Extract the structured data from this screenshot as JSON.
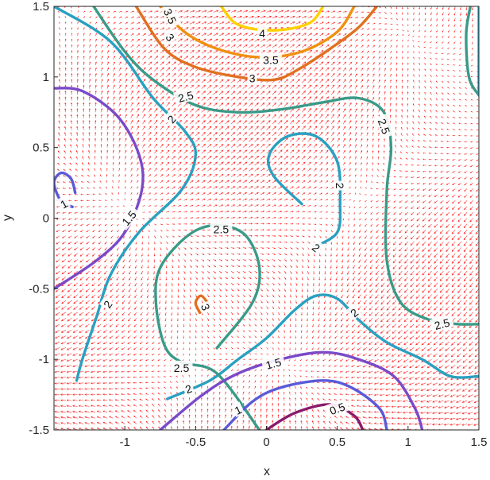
{
  "chart_data": {
    "type": "contour",
    "overlay": "quiver",
    "xlabel": "x",
    "ylabel": "y",
    "xlim": [
      -1.5,
      1.5
    ],
    "ylim": [
      -1.5,
      1.5
    ],
    "xticks": [
      -1,
      -0.5,
      0,
      0.5,
      1,
      1.5
    ],
    "yticks": [
      -1.5,
      -1,
      -0.5,
      0,
      0.5,
      1,
      1.5
    ],
    "xtick_labels": [
      "-1",
      "-0.5",
      "0",
      "0.5",
      "1",
      "1.5"
    ],
    "ytick_labels": [
      "-1.5",
      "-1",
      "-0.5",
      "0",
      "0.5",
      "1",
      "1.5"
    ],
    "grid": false,
    "quiver_color": "#ff0000",
    "contour_levels": [
      0.5,
      1,
      1.5,
      2,
      2.5,
      3,
      3.5,
      4
    ],
    "contour_colors": {
      "0.5": "#8a1a6a",
      "1": "#5a5ad8",
      "1.5": "#7a4ac8",
      "2": "#2aa0c0",
      "2.5": "#3a9a88",
      "3": "#e07020",
      "3.5": "#f09010",
      "4": "#ffd000"
    },
    "contour_labels": [
      {
        "text": "3.5",
        "x": -0.68,
        "y": 1.43,
        "angle": 65
      },
      {
        "text": "4",
        "x": -0.03,
        "y": 1.31,
        "angle": 0
      },
      {
        "text": "3",
        "x": -0.68,
        "y": 1.28,
        "angle": 55
      },
      {
        "text": "3.5",
        "x": 0.03,
        "y": 1.12,
        "angle": 0
      },
      {
        "text": "3",
        "x": -0.1,
        "y": 0.99,
        "angle": 0
      },
      {
        "text": "2.5",
        "x": -0.57,
        "y": 0.86,
        "angle": -15
      },
      {
        "text": "2",
        "x": -0.67,
        "y": 0.7,
        "angle": -50
      },
      {
        "text": "2.5",
        "x": 0.83,
        "y": 0.65,
        "angle": 70
      },
      {
        "text": "2",
        "x": 0.52,
        "y": 0.23,
        "angle": 90
      },
      {
        "text": "1",
        "x": -1.43,
        "y": 0.1,
        "angle": -30
      },
      {
        "text": "1.5",
        "x": -0.97,
        "y": 0.0,
        "angle": -50
      },
      {
        "text": "2.5",
        "x": -0.32,
        "y": -0.08,
        "angle": 0
      },
      {
        "text": "2",
        "x": 0.35,
        "y": -0.21,
        "angle": 40
      },
      {
        "text": "3",
        "x": -0.43,
        "y": -0.63,
        "angle": 70
      },
      {
        "text": "2",
        "x": -1.12,
        "y": -0.61,
        "angle": -55
      },
      {
        "text": "2",
        "x": 0.62,
        "y": -0.67,
        "angle": -40
      },
      {
        "text": "2.5",
        "x": 1.24,
        "y": -0.75,
        "angle": -15
      },
      {
        "text": "1.5",
        "x": 0.05,
        "y": -1.03,
        "angle": -15
      },
      {
        "text": "2.5",
        "x": -0.6,
        "y": -1.06,
        "angle": 0
      },
      {
        "text": "2",
        "x": -0.55,
        "y": -1.21,
        "angle": -20
      },
      {
        "text": "1",
        "x": -0.2,
        "y": -1.36,
        "angle": -25
      },
      {
        "text": "0.5",
        "x": 0.5,
        "y": -1.35,
        "angle": -20
      }
    ],
    "contour_lines": [
      {
        "level": 4,
        "points": [
          [
            -0.32,
            1.5
          ],
          [
            -0.2,
            1.37
          ],
          [
            0.05,
            1.33
          ],
          [
            0.3,
            1.38
          ],
          [
            0.4,
            1.5
          ]
        ]
      },
      {
        "level": 3.5,
        "points": [
          [
            -0.75,
            1.5
          ],
          [
            -0.58,
            1.32
          ],
          [
            -0.35,
            1.2
          ],
          [
            -0.05,
            1.14
          ],
          [
            0.25,
            1.18
          ],
          [
            0.5,
            1.32
          ],
          [
            0.62,
            1.5
          ]
        ]
      },
      {
        "level": 3,
        "points": [
          [
            -0.92,
            1.5
          ],
          [
            -0.72,
            1.2
          ],
          [
            -0.5,
            1.07
          ],
          [
            -0.2,
            1.0
          ],
          [
            0.05,
            0.98
          ],
          [
            0.22,
            1.05
          ],
          [
            0.45,
            1.2
          ],
          [
            0.65,
            1.35
          ],
          [
            0.78,
            1.5
          ]
        ]
      },
      {
        "level": 2.5,
        "points": [
          [
            -1.22,
            1.5
          ],
          [
            -1.0,
            1.18
          ],
          [
            -0.8,
            0.98
          ],
          [
            -0.5,
            0.8
          ],
          [
            -0.2,
            0.75
          ],
          [
            0.1,
            0.77
          ],
          [
            0.4,
            0.82
          ],
          [
            0.65,
            0.85
          ],
          [
            0.83,
            0.75
          ],
          [
            0.88,
            0.5
          ],
          [
            0.85,
            0.2
          ],
          [
            0.85,
            -0.3
          ],
          [
            0.95,
            -0.6
          ],
          [
            1.15,
            -0.72
          ],
          [
            1.35,
            -0.75
          ],
          [
            1.5,
            -0.75
          ]
        ]
      },
      {
        "level": 2.5,
        "points": [
          [
            1.5,
            0.87
          ],
          [
            1.43,
            1.0
          ],
          [
            1.41,
            1.3
          ],
          [
            1.44,
            1.5
          ]
        ]
      },
      {
        "level": 2,
        "points": [
          [
            -1.5,
            1.5
          ],
          [
            -1.1,
            1.25
          ],
          [
            -0.8,
            0.85
          ],
          [
            -0.58,
            0.62
          ],
          [
            -0.5,
            0.45
          ],
          [
            -0.6,
            0.2
          ],
          [
            -0.9,
            -0.1
          ],
          [
            -1.1,
            -0.4
          ],
          [
            -1.2,
            -0.7
          ],
          [
            -1.3,
            -1.0
          ],
          [
            -1.34,
            -1.15
          ]
        ]
      },
      {
        "level": 2,
        "points": [
          [
            0.25,
            0.1
          ],
          [
            0.05,
            0.3
          ],
          [
            0.02,
            0.45
          ],
          [
            0.15,
            0.58
          ],
          [
            0.35,
            0.58
          ],
          [
            0.5,
            0.4
          ],
          [
            0.52,
            0.1
          ],
          [
            0.5,
            -0.1
          ],
          [
            0.35,
            -0.2
          ]
        ]
      },
      {
        "level": 2,
        "points": [
          [
            -0.7,
            -1.28
          ],
          [
            -0.4,
            -1.15
          ],
          [
            -0.2,
            -1.0
          ],
          [
            0.0,
            -0.85
          ],
          [
            0.2,
            -0.65
          ],
          [
            0.35,
            -0.55
          ],
          [
            0.5,
            -0.57
          ],
          [
            0.65,
            -0.72
          ],
          [
            0.85,
            -0.88
          ],
          [
            1.1,
            -1.0
          ],
          [
            1.3,
            -1.12
          ],
          [
            1.5,
            -1.12
          ]
        ]
      },
      {
        "level": 2,
        "points": [
          [
            1.5,
            1.5
          ],
          [
            1.5,
            0.87
          ]
        ]
      },
      {
        "level": 2.5,
        "points": [
          [
            -0.05,
            -1.5
          ],
          [
            -0.35,
            -1.1
          ],
          [
            -0.6,
            -1.02
          ],
          [
            -0.72,
            -0.9
          ],
          [
            -0.78,
            -0.6
          ],
          [
            -0.75,
            -0.35
          ],
          [
            -0.55,
            -0.12
          ],
          [
            -0.35,
            -0.05
          ],
          [
            -0.15,
            -0.12
          ],
          [
            -0.05,
            -0.35
          ],
          [
            -0.1,
            -0.6
          ],
          [
            -0.35,
            -0.92
          ]
        ]
      },
      {
        "level": 3,
        "points": [
          [
            -0.4,
            -0.62
          ],
          [
            -0.46,
            -0.55
          ],
          [
            -0.5,
            -0.6
          ],
          [
            -0.47,
            -0.67
          ]
        ]
      },
      {
        "level": 1,
        "points": [
          [
            -1.35,
            0.18
          ],
          [
            -1.38,
            0.28
          ],
          [
            -1.45,
            0.32
          ],
          [
            -1.5,
            0.25
          ],
          [
            -1.45,
            0.12
          ],
          [
            -1.37,
            0.08
          ]
        ]
      },
      {
        "level": 1.5,
        "points": [
          [
            -1.5,
            0.92
          ],
          [
            -1.3,
            0.9
          ],
          [
            -1.05,
            0.72
          ],
          [
            -0.9,
            0.45
          ],
          [
            -0.88,
            0.2
          ],
          [
            -1.0,
            -0.1
          ],
          [
            -1.2,
            -0.3
          ],
          [
            -1.5,
            -0.5
          ]
        ]
      },
      {
        "level": 1.5,
        "points": [
          [
            -0.75,
            -1.5
          ],
          [
            -0.45,
            -1.25
          ],
          [
            -0.2,
            -1.1
          ],
          [
            0.1,
            -1.0
          ],
          [
            0.4,
            -0.95
          ],
          [
            0.65,
            -1.0
          ],
          [
            0.9,
            -1.12
          ],
          [
            1.05,
            -1.35
          ],
          [
            1.1,
            -1.5
          ]
        ]
      },
      {
        "level": 1,
        "points": [
          [
            -0.3,
            -1.5
          ],
          [
            -0.1,
            -1.3
          ],
          [
            0.1,
            -1.2
          ],
          [
            0.4,
            -1.15
          ],
          [
            0.6,
            -1.2
          ],
          [
            0.8,
            -1.35
          ],
          [
            0.85,
            -1.5
          ]
        ]
      },
      {
        "level": 0.5,
        "points": [
          [
            0.0,
            -1.5
          ],
          [
            0.2,
            -1.38
          ],
          [
            0.45,
            -1.32
          ],
          [
            0.62,
            -1.4
          ],
          [
            0.68,
            -1.5
          ]
        ]
      }
    ]
  }
}
